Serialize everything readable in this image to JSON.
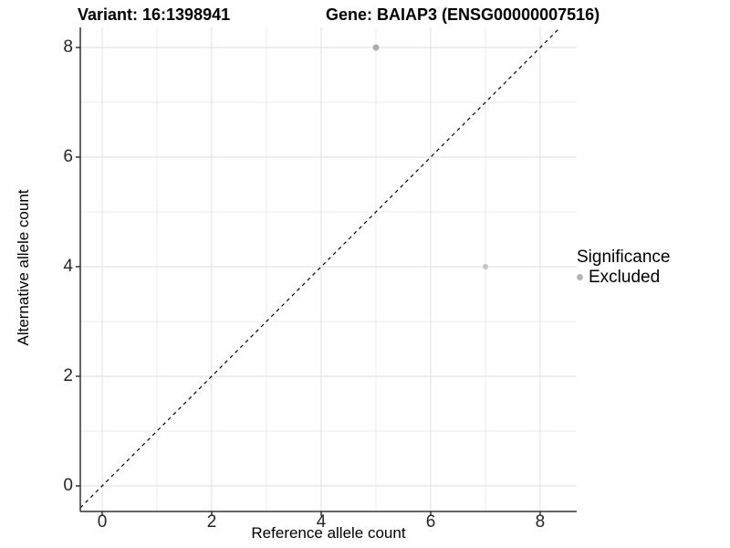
{
  "figure": {
    "title_left": "Variant: 16:1398941",
    "title_right": "Gene: BAIAP3 (ENSG00000007516)"
  },
  "chart_data": {
    "type": "scatter",
    "title": "Variant: 16:1398941   Gene: BAIAP3 (ENSG00000007516)",
    "xlabel": "Reference allele count",
    "ylabel": "Alternative allele count",
    "x_ticks": [
      0,
      2,
      4,
      6,
      8
    ],
    "y_ticks": [
      0,
      2,
      4,
      6,
      8
    ],
    "x_minor_ticks": [
      1,
      3,
      5,
      7
    ],
    "y_minor_ticks": [
      1,
      3,
      5,
      7
    ],
    "xlim": [
      -0.4,
      8.667
    ],
    "ylim": [
      -0.467,
      8.367
    ],
    "grid": true,
    "identity_line": {
      "slope": 1,
      "intercept": 0,
      "style": "dashed",
      "color": "#000000"
    },
    "series": [
      {
        "name": "Excluded",
        "points": [
          {
            "x": 5,
            "y": 8,
            "color": "#aeaeae",
            "r": 3.5
          },
          {
            "x": 7,
            "y": 4,
            "color": "#c6c6c6",
            "r": 3
          }
        ]
      }
    ],
    "legend": {
      "title": "Significance",
      "position": "right",
      "items": [
        {
          "label": "Excluded",
          "color": "#b4b4b4"
        }
      ]
    },
    "style": {
      "grid_major_color": "#e4e4e4",
      "grid_minor_color": "#ebebeb",
      "axis_line_color": "#333333",
      "tick_mark_color": "#333333",
      "tick_text_color": "#262626",
      "point_group": "Excluded"
    }
  }
}
